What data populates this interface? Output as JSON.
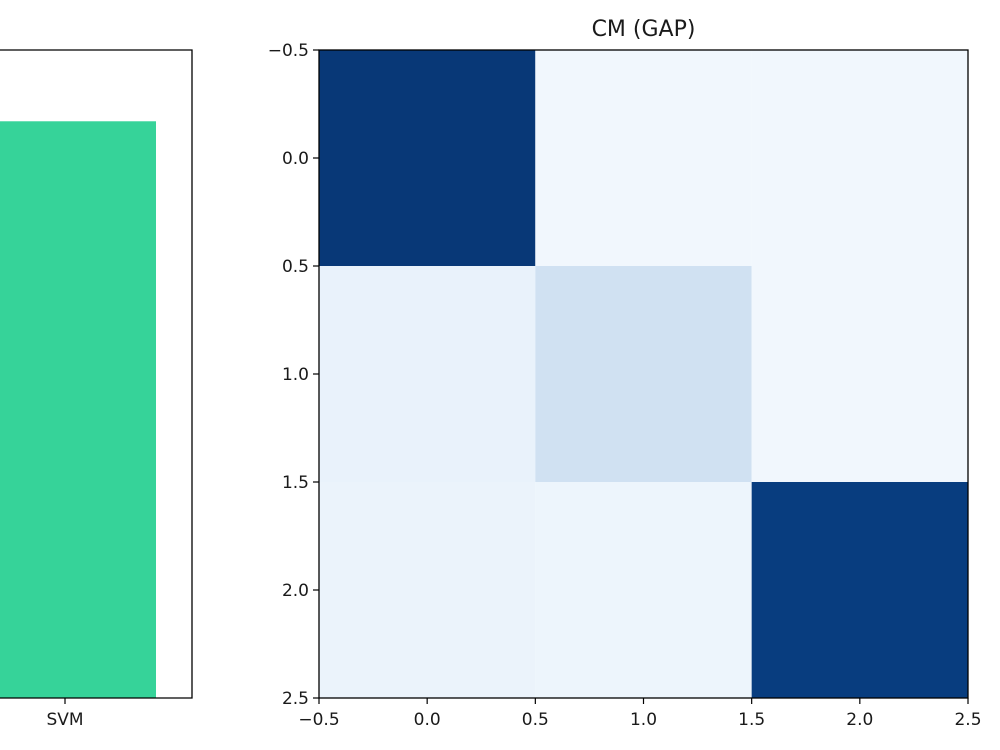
{
  "chart_data": [
    {
      "type": "bar",
      "categories": [
        "SVM"
      ],
      "values": [
        0.89
      ],
      "ylim": [
        0,
        1.0
      ],
      "colors": [
        "#36d399"
      ],
      "title": "",
      "xlabel": "",
      "ylabel": ""
    },
    {
      "type": "heatmap",
      "title": "CM (GAP)",
      "colormap": "Blues",
      "matrix": [
        [
          0.97,
          0.03,
          0.03
        ],
        [
          0.07,
          0.2,
          0.03
        ],
        [
          0.06,
          0.05,
          0.95
        ]
      ],
      "xlim": [
        -0.5,
        2.5
      ],
      "ylim": [
        2.5,
        -0.5
      ],
      "xticks": [
        "−0.5",
        "0.0",
        "0.5",
        "1.0",
        "1.5",
        "2.0",
        "2.5"
      ],
      "yticks": [
        "−0.5",
        "0.0",
        "0.5",
        "1.0",
        "1.5",
        "2.0",
        "2.5"
      ],
      "xlabel": "",
      "ylabel": ""
    }
  ]
}
